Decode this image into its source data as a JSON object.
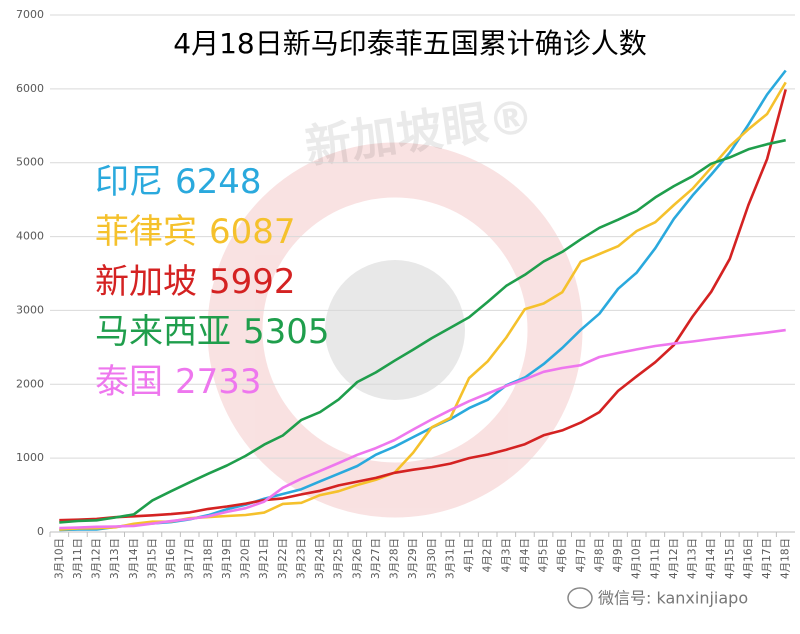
{
  "chart_data": {
    "type": "line",
    "title": "4月18日新马印泰菲五国累计确诊人数",
    "watermark": "新加坡眼®",
    "footer": "微信号: kanxinjiapo",
    "categories": [
      "3月10日",
      "3月11日",
      "3月12日",
      "3月13日",
      "3月14日",
      "3月15日",
      "3月16日",
      "3月17日",
      "3月18日",
      "3月19日",
      "3月20日",
      "3月21日",
      "3月22日",
      "3月23日",
      "3月24日",
      "3月25日",
      "3月26日",
      "3月27日",
      "3月28日",
      "3月29日",
      "3月30日",
      "3月31日",
      "4月1日",
      "4月2日",
      "4月3日",
      "4月4日",
      "4月5日",
      "4月6日",
      "4月7日",
      "4月8日",
      "4月9日",
      "4月10日",
      "4月11日",
      "4月12日",
      "4月13日",
      "4月14日",
      "4月15日",
      "4月16日",
      "4月17日",
      "4月18日"
    ],
    "series": [
      {
        "name": "印尼",
        "color": "#2aa9dd",
        "values": [
          27,
          34,
          34,
          69,
          96,
          117,
          134,
          172,
          227,
          309,
          369,
          450,
          514,
          579,
          686,
          790,
          893,
          1046,
          1155,
          1285,
          1414,
          1528,
          1677,
          1790,
          1986,
          2092,
          2273,
          2491,
          2738,
          2956,
          3293,
          3512,
          3842,
          4241,
          4557,
          4839,
          5136,
          5516,
          5923,
          6248
        ]
      },
      {
        "name": "菲律宾",
        "color": "#f5c12c",
        "values": [
          33,
          49,
          52,
          64,
          111,
          140,
          142,
          187,
          202,
          217,
          230,
          262,
          380,
          396,
          500,
          552,
          636,
          707,
          803,
          1075,
          1418,
          1546,
          2084,
          2311,
          2633,
          3018,
          3094,
          3246,
          3660,
          3764,
          3870,
          4076,
          4195,
          4428,
          4648,
          4932,
          5223,
          5453,
          5660,
          6087
        ]
      },
      {
        "name": "新加坡",
        "color": "#d42222",
        "values": [
          160,
          166,
          178,
          200,
          212,
          226,
          243,
          266,
          313,
          345,
          385,
          432,
          455,
          509,
          558,
          631,
          683,
          732,
          802,
          844,
          879,
          926,
          1000,
          1049,
          1114,
          1189,
          1309,
          1375,
          1481,
          1623,
          1910,
          2108,
          2299,
          2532,
          2918,
          3252,
          3699,
          4427,
          5050,
          5992
        ]
      },
      {
        "name": "马来西亚",
        "color": "#1f9e4c",
        "values": [
          129,
          149,
          158,
          197,
          238,
          428,
          553,
          673,
          790,
          900,
          1030,
          1183,
          1306,
          1518,
          1624,
          1796,
          2031,
          2161,
          2320,
          2470,
          2626,
          2766,
          2908,
          3116,
          3333,
          3483,
          3662,
          3793,
          3963,
          4119,
          4228,
          4346,
          4530,
          4683,
          4817,
          4987,
          5072,
          5182,
          5251,
          5305
        ]
      },
      {
        "name": "泰国",
        "color": "#ee77ee",
        "values": [
          53,
          59,
          70,
          75,
          82,
          114,
          147,
          177,
          212,
          272,
          322,
          411,
          599,
          721,
          827,
          934,
          1045,
          1136,
          1245,
          1388,
          1524,
          1651,
          1771,
          1875,
          1978,
          2067,
          2169,
          2220,
          2258,
          2369,
          2423,
          2473,
          2518,
          2551,
          2579,
          2613,
          2643,
          2672,
          2700,
          2733
        ]
      }
    ],
    "ylim": [
      0,
      7000
    ],
    "yticks": [
      0,
      1000,
      2000,
      3000,
      4000,
      5000,
      6000,
      7000
    ],
    "grid": true
  }
}
